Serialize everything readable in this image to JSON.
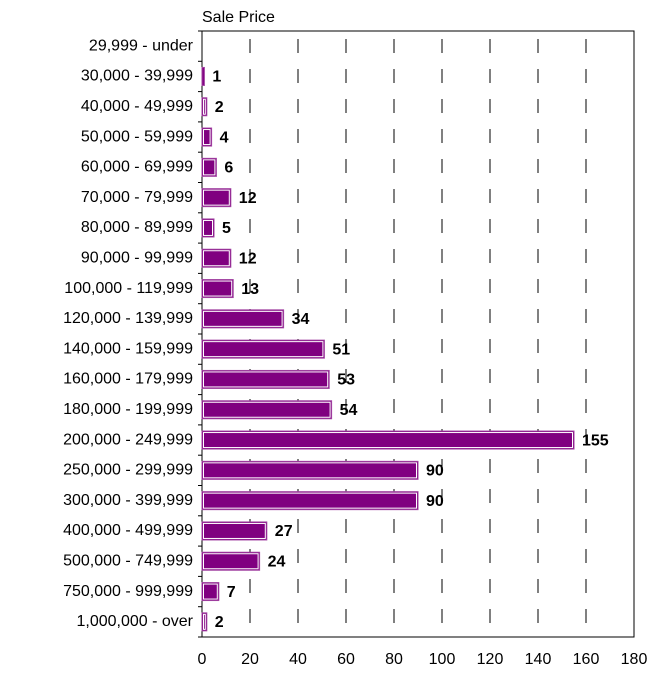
{
  "chart_data": {
    "type": "barh",
    "title": "Sale Price",
    "categories": [
      "29,999 - under",
      "30,000 - 39,999",
      "40,000 - 49,999",
      "50,000 - 59,999",
      "60,000 - 69,999",
      "70,000 - 79,999",
      "80,000 - 89,999",
      "90,000 - 99,999",
      "100,000 - 119,999",
      "120,000 - 139,999",
      "140,000 - 159,999",
      "160,000 - 179,999",
      "180,000 - 199,999",
      "200,000 - 249,999",
      "250,000 - 299,999",
      "300,000 - 399,999",
      "400,000 - 499,999",
      "500,000 - 749,999",
      "750,000 - 999,999",
      "1,000,000 - over"
    ],
    "values": [
      null,
      1,
      2,
      4,
      6,
      12,
      5,
      12,
      13,
      34,
      51,
      53,
      54,
      155,
      90,
      90,
      27,
      24,
      7,
      2
    ],
    "color": "#800080",
    "xlim": [
      0,
      180
    ],
    "xticks": [
      0,
      20,
      40,
      60,
      80,
      100,
      120,
      140,
      160,
      180
    ],
    "grid": true
  }
}
